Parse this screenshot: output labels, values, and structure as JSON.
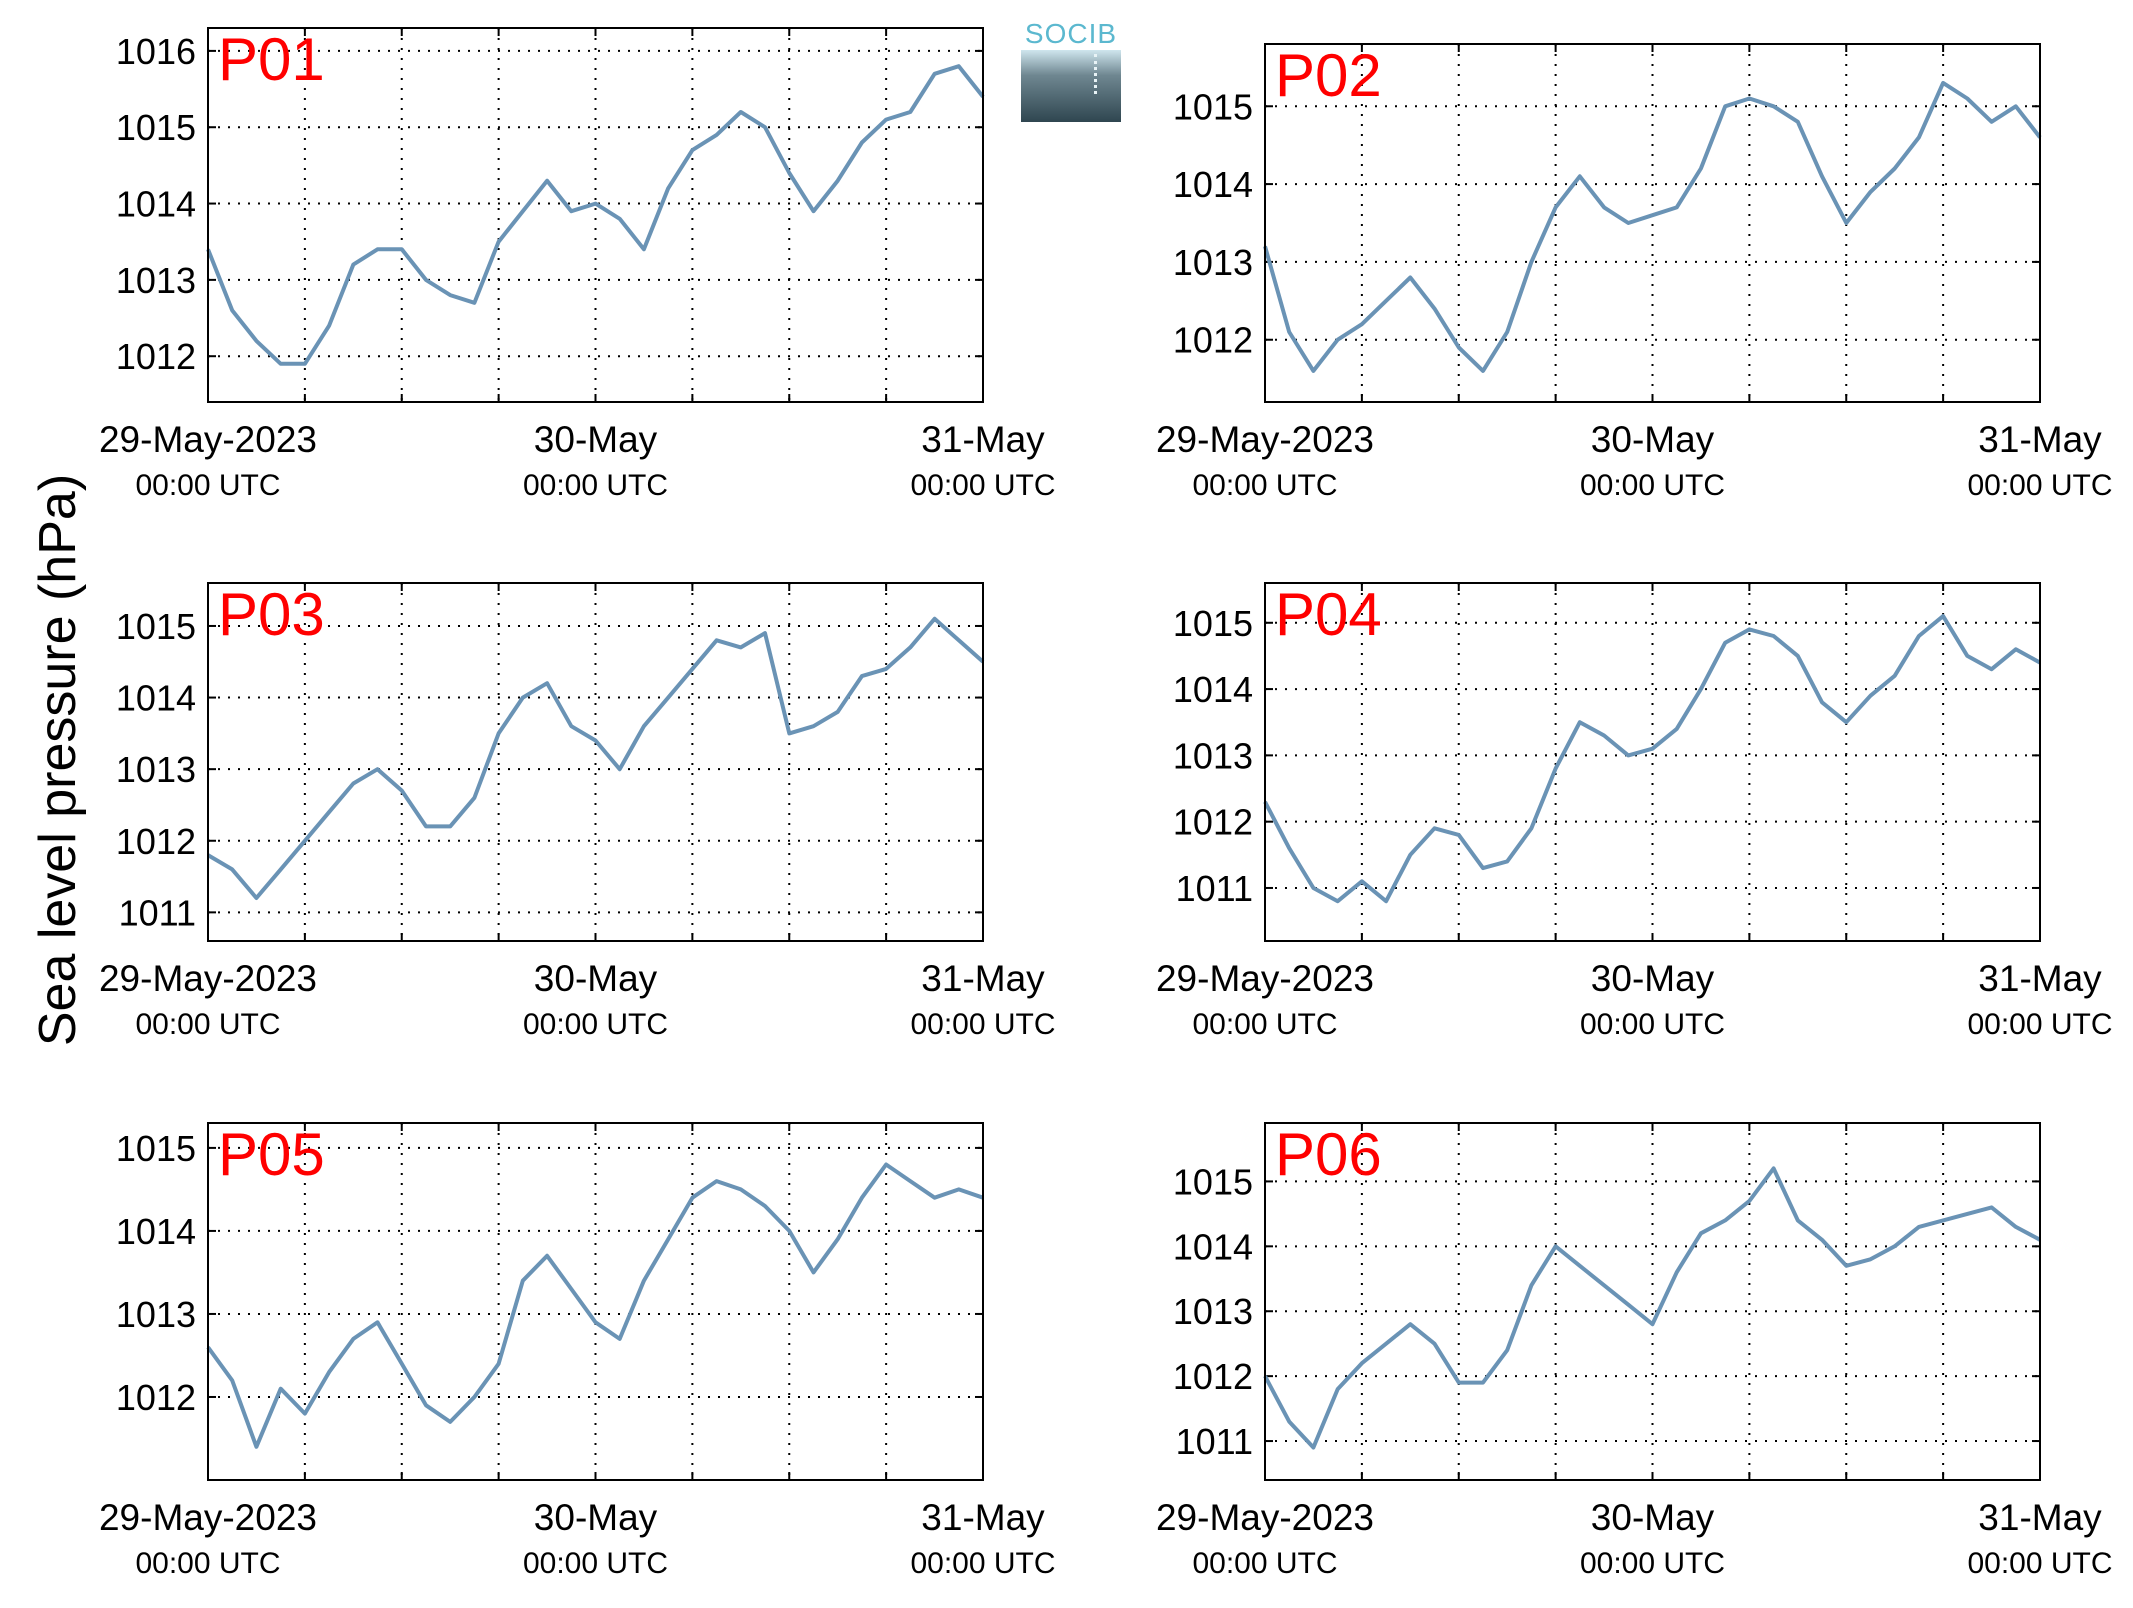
{
  "figure": {
    "ylabel": "Sea level pressure (hPa)",
    "logo_text": "SOCIB",
    "colors": {
      "line": "#6a93b5",
      "panel_label": "#ff0000",
      "axes": "#000000"
    }
  },
  "chart_data": [
    {
      "type": "line",
      "panel_label": "P01",
      "x_ticks": [
        {
          "value": "2023-05-29T00:00",
          "line1": "29-May-2023",
          "line2": "00:00 UTC"
        },
        {
          "value": "2023-05-30T00:00",
          "line1": "30-May",
          "line2": "00:00 UTC"
        },
        {
          "value": "2023-05-31T00:00",
          "line1": "31-May",
          "line2": "00:00 UTC"
        }
      ],
      "xlim": [
        "2023-05-29T00:00",
        "2023-05-31T00:00"
      ],
      "ylim": [
        1011.4,
        1016.3
      ],
      "yticks": [
        1012,
        1013,
        1014,
        1015,
        1016
      ],
      "grid": true,
      "series": [
        {
          "x": [
            "2023-05-29T00:00",
            "2023-05-29T01:30",
            "2023-05-29T03:00",
            "2023-05-29T04:30",
            "2023-05-29T06:00",
            "2023-05-29T07:30",
            "2023-05-29T09:00",
            "2023-05-29T10:30",
            "2023-05-29T12:00",
            "2023-05-29T13:30",
            "2023-05-29T15:00",
            "2023-05-29T16:30",
            "2023-05-29T18:00",
            "2023-05-29T19:30",
            "2023-05-29T21:00",
            "2023-05-29T22:30",
            "2023-05-30T00:00",
            "2023-05-30T01:30",
            "2023-05-30T03:00",
            "2023-05-30T04:30",
            "2023-05-30T06:00",
            "2023-05-30T07:30",
            "2023-05-30T09:00",
            "2023-05-30T10:30",
            "2023-05-30T12:00",
            "2023-05-30T13:30",
            "2023-05-30T15:00",
            "2023-05-30T16:30",
            "2023-05-30T18:00",
            "2023-05-30T19:30",
            "2023-05-30T21:00",
            "2023-05-30T22:30",
            "2023-05-31T00:00"
          ],
          "y": [
            1013.4,
            1012.6,
            1012.2,
            1011.9,
            1011.9,
            1012.4,
            1013.2,
            1013.4,
            1013.4,
            1013.0,
            1012.8,
            1012.7,
            1013.5,
            1013.9,
            1014.3,
            1013.9,
            1014.0,
            1013.8,
            1013.4,
            1014.2,
            1014.7,
            1014.9,
            1015.2,
            1015.0,
            1014.4,
            1013.9,
            1014.3,
            1014.8,
            1015.1,
            1015.2,
            1015.7,
            1015.8,
            1015.4
          ]
        }
      ]
    },
    {
      "type": "line",
      "panel_label": "P02",
      "x_ticks": [
        {
          "value": "2023-05-29T00:00",
          "line1": "29-May-2023",
          "line2": "00:00 UTC"
        },
        {
          "value": "2023-05-30T00:00",
          "line1": "30-May",
          "line2": "00:00 UTC"
        },
        {
          "value": "2023-05-31T00:00",
          "line1": "31-May",
          "line2": "00:00 UTC"
        }
      ],
      "xlim": [
        "2023-05-29T00:00",
        "2023-05-31T00:00"
      ],
      "ylim": [
        1011.2,
        1015.8
      ],
      "yticks": [
        1012,
        1013,
        1014,
        1015
      ],
      "grid": true,
      "series": [
        {
          "x": [
            "2023-05-29T00:00",
            "2023-05-29T01:30",
            "2023-05-29T03:00",
            "2023-05-29T04:30",
            "2023-05-29T06:00",
            "2023-05-29T07:30",
            "2023-05-29T09:00",
            "2023-05-29T10:30",
            "2023-05-29T12:00",
            "2023-05-29T13:30",
            "2023-05-29T15:00",
            "2023-05-29T16:30",
            "2023-05-29T18:00",
            "2023-05-29T19:30",
            "2023-05-29T21:00",
            "2023-05-29T22:30",
            "2023-05-30T00:00",
            "2023-05-30T01:30",
            "2023-05-30T03:00",
            "2023-05-30T04:30",
            "2023-05-30T06:00",
            "2023-05-30T07:30",
            "2023-05-30T09:00",
            "2023-05-30T10:30",
            "2023-05-30T12:00",
            "2023-05-30T13:30",
            "2023-05-30T15:00",
            "2023-05-30T16:30",
            "2023-05-30T18:00",
            "2023-05-30T19:30",
            "2023-05-30T21:00",
            "2023-05-30T22:30",
            "2023-05-31T00:00"
          ],
          "y": [
            1013.2,
            1012.1,
            1011.6,
            1012.0,
            1012.2,
            1012.5,
            1012.8,
            1012.4,
            1011.9,
            1011.6,
            1012.1,
            1013.0,
            1013.7,
            1014.1,
            1013.7,
            1013.5,
            1013.6,
            1013.7,
            1014.2,
            1015.0,
            1015.1,
            1015.0,
            1014.8,
            1014.1,
            1013.5,
            1013.9,
            1014.2,
            1014.6,
            1015.3,
            1015.1,
            1014.8,
            1015.0,
            1014.6
          ]
        }
      ]
    },
    {
      "type": "line",
      "panel_label": "P03",
      "x_ticks": [
        {
          "value": "2023-05-29T00:00",
          "line1": "29-May-2023",
          "line2": "00:00 UTC"
        },
        {
          "value": "2023-05-30T00:00",
          "line1": "30-May",
          "line2": "00:00 UTC"
        },
        {
          "value": "2023-05-31T00:00",
          "line1": "31-May",
          "line2": "00:00 UTC"
        }
      ],
      "xlim": [
        "2023-05-29T00:00",
        "2023-05-31T00:00"
      ],
      "ylim": [
        1010.6,
        1015.6
      ],
      "yticks": [
        1011,
        1012,
        1013,
        1014,
        1015
      ],
      "grid": true,
      "series": [
        {
          "x": [
            "2023-05-29T00:00",
            "2023-05-29T01:30",
            "2023-05-29T03:00",
            "2023-05-29T04:30",
            "2023-05-29T06:00",
            "2023-05-29T07:30",
            "2023-05-29T09:00",
            "2023-05-29T10:30",
            "2023-05-29T12:00",
            "2023-05-29T13:30",
            "2023-05-29T15:00",
            "2023-05-29T16:30",
            "2023-05-29T18:00",
            "2023-05-29T19:30",
            "2023-05-29T21:00",
            "2023-05-29T22:30",
            "2023-05-30T00:00",
            "2023-05-30T01:30",
            "2023-05-30T03:00",
            "2023-05-30T04:30",
            "2023-05-30T06:00",
            "2023-05-30T07:30",
            "2023-05-30T09:00",
            "2023-05-30T10:30",
            "2023-05-30T12:00",
            "2023-05-30T13:30",
            "2023-05-30T15:00",
            "2023-05-30T16:30",
            "2023-05-30T18:00",
            "2023-05-30T19:30",
            "2023-05-30T21:00",
            "2023-05-30T22:30",
            "2023-05-31T00:00"
          ],
          "y": [
            1011.8,
            1011.6,
            1011.2,
            1011.6,
            1012.0,
            1012.4,
            1012.8,
            1013.0,
            1012.7,
            1012.2,
            1012.2,
            1012.6,
            1013.5,
            1014.0,
            1014.2,
            1013.6,
            1013.4,
            1013.0,
            1013.6,
            1014.0,
            1014.4,
            1014.8,
            1014.7,
            1014.9,
            1013.5,
            1013.6,
            1013.8,
            1014.3,
            1014.4,
            1014.7,
            1015.1,
            1014.8,
            1014.5
          ]
        }
      ]
    },
    {
      "type": "line",
      "panel_label": "P04",
      "x_ticks": [
        {
          "value": "2023-05-29T00:00",
          "line1": "29-May-2023",
          "line2": "00:00 UTC"
        },
        {
          "value": "2023-05-30T00:00",
          "line1": "30-May",
          "line2": "00:00 UTC"
        },
        {
          "value": "2023-05-31T00:00",
          "line1": "31-May",
          "line2": "00:00 UTC"
        }
      ],
      "xlim": [
        "2023-05-29T00:00",
        "2023-05-31T00:00"
      ],
      "ylim": [
        1010.2,
        1015.6
      ],
      "yticks": [
        1011,
        1012,
        1013,
        1014,
        1015
      ],
      "grid": true,
      "series": [
        {
          "x": [
            "2023-05-29T00:00",
            "2023-05-29T01:30",
            "2023-05-29T03:00",
            "2023-05-29T04:30",
            "2023-05-29T06:00",
            "2023-05-29T07:30",
            "2023-05-29T09:00",
            "2023-05-29T10:30",
            "2023-05-29T12:00",
            "2023-05-29T13:30",
            "2023-05-29T15:00",
            "2023-05-29T16:30",
            "2023-05-29T18:00",
            "2023-05-29T19:30",
            "2023-05-29T21:00",
            "2023-05-29T22:30",
            "2023-05-30T00:00",
            "2023-05-30T01:30",
            "2023-05-30T03:00",
            "2023-05-30T04:30",
            "2023-05-30T06:00",
            "2023-05-30T07:30",
            "2023-05-30T09:00",
            "2023-05-30T10:30",
            "2023-05-30T12:00",
            "2023-05-30T13:30",
            "2023-05-30T15:00",
            "2023-05-30T16:30",
            "2023-05-30T18:00",
            "2023-05-30T19:30",
            "2023-05-30T21:00",
            "2023-05-30T22:30",
            "2023-05-31T00:00"
          ],
          "y": [
            1012.3,
            1011.6,
            1011.0,
            1010.8,
            1011.1,
            1010.8,
            1011.5,
            1011.9,
            1011.8,
            1011.3,
            1011.4,
            1011.9,
            1012.8,
            1013.5,
            1013.3,
            1013.0,
            1013.1,
            1013.4,
            1014.0,
            1014.7,
            1014.9,
            1014.8,
            1014.5,
            1013.8,
            1013.5,
            1013.9,
            1014.2,
            1014.8,
            1015.1,
            1014.5,
            1014.3,
            1014.6,
            1014.4
          ]
        }
      ]
    },
    {
      "type": "line",
      "panel_label": "P05",
      "x_ticks": [
        {
          "value": "2023-05-29T00:00",
          "line1": "29-May-2023",
          "line2": "00:00 UTC"
        },
        {
          "value": "2023-05-30T00:00",
          "line1": "30-May",
          "line2": "00:00 UTC"
        },
        {
          "value": "2023-05-31T00:00",
          "line1": "31-May",
          "line2": "00:00 UTC"
        }
      ],
      "xlim": [
        "2023-05-29T00:00",
        "2023-05-31T00:00"
      ],
      "ylim": [
        1011.0,
        1015.3
      ],
      "yticks": [
        1012,
        1013,
        1014,
        1015
      ],
      "grid": true,
      "series": [
        {
          "x": [
            "2023-05-29T00:00",
            "2023-05-29T01:30",
            "2023-05-29T03:00",
            "2023-05-29T04:30",
            "2023-05-29T06:00",
            "2023-05-29T07:30",
            "2023-05-29T09:00",
            "2023-05-29T10:30",
            "2023-05-29T12:00",
            "2023-05-29T13:30",
            "2023-05-29T15:00",
            "2023-05-29T16:30",
            "2023-05-29T18:00",
            "2023-05-29T19:30",
            "2023-05-29T21:00",
            "2023-05-29T22:30",
            "2023-05-30T00:00",
            "2023-05-30T01:30",
            "2023-05-30T03:00",
            "2023-05-30T04:30",
            "2023-05-30T06:00",
            "2023-05-30T07:30",
            "2023-05-30T09:00",
            "2023-05-30T10:30",
            "2023-05-30T12:00",
            "2023-05-30T13:30",
            "2023-05-30T15:00",
            "2023-05-30T16:30",
            "2023-05-30T18:00",
            "2023-05-30T19:30",
            "2023-05-30T21:00",
            "2023-05-30T22:30",
            "2023-05-31T00:00"
          ],
          "y": [
            1012.6,
            1012.2,
            1011.4,
            1012.1,
            1011.8,
            1012.3,
            1012.7,
            1012.9,
            1012.4,
            1011.9,
            1011.7,
            1012.0,
            1012.4,
            1013.4,
            1013.7,
            1013.3,
            1012.9,
            1012.7,
            1013.4,
            1013.9,
            1014.4,
            1014.6,
            1014.5,
            1014.3,
            1014.0,
            1013.5,
            1013.9,
            1014.4,
            1014.8,
            1014.6,
            1014.4,
            1014.5,
            1014.4
          ]
        }
      ]
    },
    {
      "type": "line",
      "panel_label": "P06",
      "x_ticks": [
        {
          "value": "2023-05-29T00:00",
          "line1": "29-May-2023",
          "line2": "00:00 UTC"
        },
        {
          "value": "2023-05-30T00:00",
          "line1": "30-May",
          "line2": "00:00 UTC"
        },
        {
          "value": "2023-05-31T00:00",
          "line1": "31-May",
          "line2": "00:00 UTC"
        }
      ],
      "xlim": [
        "2023-05-29T00:00",
        "2023-05-31T00:00"
      ],
      "ylim": [
        1010.4,
        1015.9
      ],
      "yticks": [
        1011,
        1012,
        1013,
        1014,
        1015
      ],
      "grid": true,
      "series": [
        {
          "x": [
            "2023-05-29T00:00",
            "2023-05-29T01:30",
            "2023-05-29T03:00",
            "2023-05-29T04:30",
            "2023-05-29T06:00",
            "2023-05-29T07:30",
            "2023-05-29T09:00",
            "2023-05-29T10:30",
            "2023-05-29T12:00",
            "2023-05-29T13:30",
            "2023-05-29T15:00",
            "2023-05-29T16:30",
            "2023-05-29T18:00",
            "2023-05-29T19:30",
            "2023-05-29T21:00",
            "2023-05-29T22:30",
            "2023-05-30T00:00",
            "2023-05-30T01:30",
            "2023-05-30T03:00",
            "2023-05-30T04:30",
            "2023-05-30T06:00",
            "2023-05-30T07:30",
            "2023-05-30T09:00",
            "2023-05-30T10:30",
            "2023-05-30T12:00",
            "2023-05-30T13:30",
            "2023-05-30T15:00",
            "2023-05-30T16:30",
            "2023-05-30T18:00",
            "2023-05-30T19:30",
            "2023-05-30T21:00",
            "2023-05-30T22:30",
            "2023-05-31T00:00"
          ],
          "y": [
            1012.0,
            1011.3,
            1010.9,
            1011.8,
            1012.2,
            1012.5,
            1012.8,
            1012.5,
            1011.9,
            1011.9,
            1012.4,
            1013.4,
            1014.0,
            1013.7,
            1013.4,
            1013.1,
            1012.8,
            1013.6,
            1014.2,
            1014.4,
            1014.7,
            1015.2,
            1014.4,
            1014.1,
            1013.7,
            1013.8,
            1014.0,
            1014.3,
            1014.4,
            1014.5,
            1014.6,
            1014.3,
            1014.1
          ]
        }
      ]
    }
  ]
}
